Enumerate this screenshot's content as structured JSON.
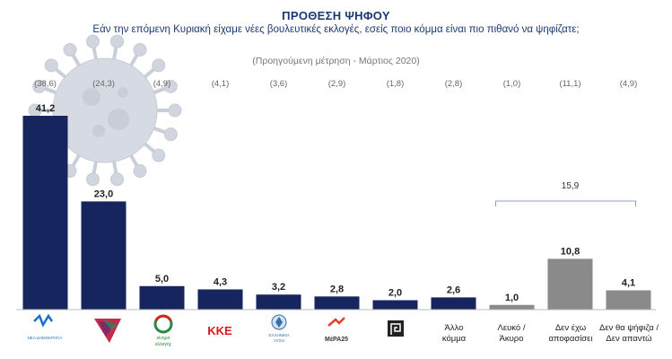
{
  "chart_data": {
    "type": "bar",
    "title": "ΠΡΟΘΕΣΗ ΨΗΦΟΥ",
    "subtitle": "Εάν την επόμενη Κυριακή είχαμε νέες βουλευτικές εκλογές, εσείς ποιο κόμμα είναι πιο πιθανό να ψηφίζατε;",
    "note": "(Προηγούμενη μέτρηση - Μάρτιος 2020)",
    "categories": [
      "ΝΔ",
      "ΣΥΡΙΖΑ",
      "Κίνημα Αλλαγής",
      "ΚΚΕ",
      "Ελληνική Λύση",
      "ΜέΡΑ25",
      "Χρυσή Αυγή",
      "Άλλο κόμμα",
      "Λευκό / Άκυρο",
      "Δεν έχω αποφασίσει",
      "Δεν θα ψήφιζα / Δεν απαντώ"
    ],
    "values": [
      41.2,
      23.0,
      5.0,
      4.3,
      3.2,
      2.8,
      2.0,
      2.6,
      1.0,
      10.8,
      4.1
    ],
    "value_labels": [
      "41,2",
      "23,0",
      "5,0",
      "4,3",
      "3,2",
      "2,8",
      "2,0",
      "2,6",
      "1,0",
      "10,8",
      "4,1"
    ],
    "previous_labels": [
      "(38,6)",
      "(24,3)",
      "(4,9)",
      "(4,1)",
      "(3,6)",
      "(2,9)",
      "(1,8)",
      "(2,8)",
      "(1,0)",
      "(11,1)",
      "(4,9)"
    ],
    "ylim": [
      0,
      41.2
    ],
    "bracket": {
      "from_index": 8,
      "to_index": 10,
      "label": "15,9"
    },
    "bar_colors": [
      "#16255e",
      "#16255e",
      "#16255e",
      "#16255e",
      "#16255e",
      "#16255e",
      "#16255e",
      "#16255e",
      "#8a8a8a",
      "#8a8a8a",
      "#8a8a8a"
    ]
  },
  "x_labels": {
    "other": [
      "Άλλο",
      "κόμμα"
    ],
    "blank": [
      "Λευκό /",
      "Άκυρο"
    ],
    "undecided": [
      "Δεν έχω",
      "αποφασίσει"
    ],
    "novote": [
      "Δεν θα ψήφιζα /",
      "Δεν απαντώ"
    ]
  },
  "logos": {
    "nd": {
      "icon": "nd-logo-icon",
      "text": "ΝΕΑ ΔΗΜΟΚΡΑΤΙΑ"
    },
    "syriza": {
      "icon": "syriza-logo-icon"
    },
    "kinal": {
      "icon": "kinal-logo-icon",
      "text": [
        "κίνημα",
        "αλλαγής"
      ]
    },
    "kke": {
      "icon": "kke-logo-icon",
      "text": "ΚΚΕ"
    },
    "elliniki": {
      "icon": "elliniki-lysi-logo-icon",
      "text": [
        "ΕΛΛΗΝΙΚΗ",
        "ΛΥΣΗ"
      ]
    },
    "mera": {
      "icon": "mera25-logo-icon",
      "text": "ΜέΡΑ25"
    },
    "xa": {
      "icon": "xrysi-avgi-logo-icon"
    }
  },
  "colors": {
    "title": "#1a3a73",
    "bar_party": "#16255e",
    "bar_other": "#8a8a8a",
    "virus": "#d0d5de"
  }
}
